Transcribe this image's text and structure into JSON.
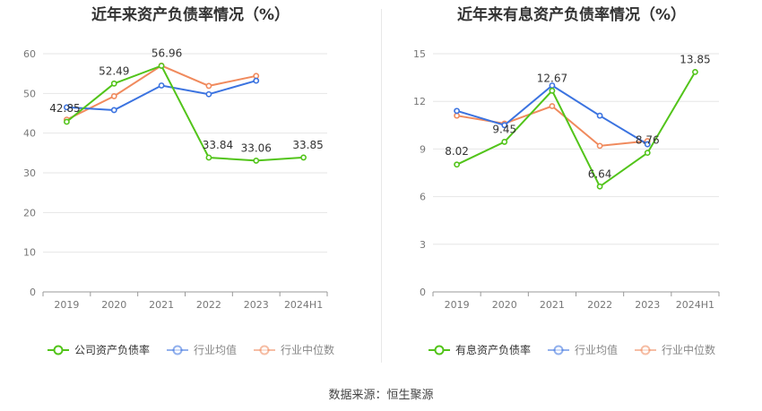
{
  "chart_data": [
    {
      "type": "line",
      "title": "近年来资产负债率情况（%）",
      "categories": [
        "2019",
        "2020",
        "2021",
        "2022",
        "2023",
        "2024H1"
      ],
      "ylim": [
        0,
        60
      ],
      "yticks": [
        "0",
        "10",
        "20",
        "30",
        "40",
        "50",
        "60"
      ],
      "grid": "horizontal",
      "legend_position": "bottom",
      "series": [
        {
          "name": "公司资产负债率",
          "color": "#52c41a",
          "values": [
            42.85,
            52.49,
            56.96,
            33.84,
            33.06,
            33.85
          ],
          "labels": [
            "42.85",
            "52.49",
            "56.96",
            "33.84",
            "33.06",
            "33.85"
          ],
          "legend_active": true
        },
        {
          "name": "行业均值",
          "color": "#3b73e0",
          "values": [
            46.5,
            45.8,
            52.0,
            49.8,
            53.2,
            null
          ],
          "labels": [],
          "legend_active": false
        },
        {
          "name": "行业中位数",
          "color": "#f08a5d",
          "values": [
            43.4,
            49.3,
            57.0,
            51.9,
            54.4,
            null
          ],
          "labels": [],
          "legend_active": false
        }
      ]
    },
    {
      "type": "line",
      "title": "近年来有息资产负债率情况（%）",
      "categories": [
        "2019",
        "2020",
        "2021",
        "2022",
        "2023",
        "2024H1"
      ],
      "ylim": [
        0,
        15
      ],
      "yticks": [
        "0",
        "3",
        "6",
        "9",
        "12",
        "15"
      ],
      "grid": "horizontal",
      "legend_position": "bottom",
      "series": [
        {
          "name": "有息资产负债率",
          "color": "#52c41a",
          "values": [
            8.02,
            9.45,
            12.67,
            6.64,
            8.76,
            13.85
          ],
          "labels": [
            "8.02",
            "9.45",
            "12.67",
            "6.64",
            "8.76",
            "13.85"
          ],
          "legend_active": true
        },
        {
          "name": "行业均值",
          "color": "#3b73e0",
          "values": [
            11.4,
            10.5,
            13.0,
            11.1,
            9.3,
            null
          ],
          "labels": [],
          "legend_active": false
        },
        {
          "name": "行业中位数",
          "color": "#f08a5d",
          "values": [
            11.1,
            10.6,
            11.7,
            9.2,
            9.5,
            null
          ],
          "labels": [],
          "legend_active": false
        }
      ]
    }
  ],
  "footer": {
    "source": "数据来源：恒生聚源"
  }
}
